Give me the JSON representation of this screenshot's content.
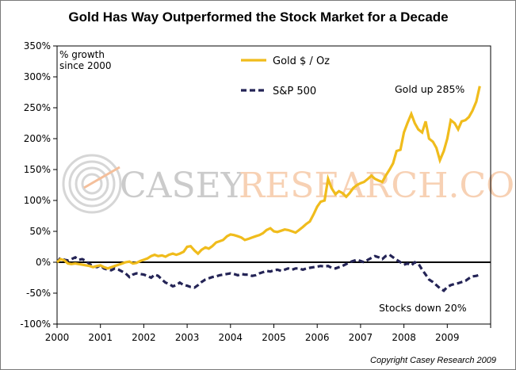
{
  "chart_data": {
    "type": "line",
    "title": "Gold Has Way Outperformed the Stock Market for a Decade",
    "ylabel_line1": "% growth",
    "ylabel_line2": "since 2000",
    "y_ticks": [
      "350%",
      "300%",
      "250%",
      "200%",
      "150%",
      "100%",
      "50%",
      "0%",
      "-50%",
      "-100%"
    ],
    "ylim": [
      -100,
      350
    ],
    "x_ticks": [
      "2000",
      "2001",
      "2002",
      "2003",
      "2004",
      "2005",
      "2006",
      "2007",
      "2008",
      "2009"
    ],
    "xlim": [
      2000,
      2010
    ],
    "series": [
      {
        "name": "Gold $ / Oz",
        "color": "#F0BC1C",
        "style": "solid",
        "x": [
          2000.0,
          2000.08,
          2000.17,
          2000.25,
          2000.33,
          2000.42,
          2000.5,
          2000.58,
          2000.67,
          2000.75,
          2000.83,
          2000.92,
          2001.0,
          2001.08,
          2001.17,
          2001.25,
          2001.33,
          2001.42,
          2001.5,
          2001.58,
          2001.67,
          2001.75,
          2001.83,
          2001.92,
          2002.0,
          2002.08,
          2002.17,
          2002.25,
          2002.33,
          2002.42,
          2002.5,
          2002.58,
          2002.67,
          2002.75,
          2002.83,
          2002.92,
          2003.0,
          2003.08,
          2003.17,
          2003.25,
          2003.33,
          2003.42,
          2003.5,
          2003.58,
          2003.67,
          2003.75,
          2003.83,
          2003.92,
          2004.0,
          2004.08,
          2004.17,
          2004.25,
          2004.33,
          2004.42,
          2004.5,
          2004.58,
          2004.67,
          2004.75,
          2004.83,
          2004.92,
          2005.0,
          2005.08,
          2005.17,
          2005.25,
          2005.33,
          2005.42,
          2005.5,
          2005.58,
          2005.67,
          2005.75,
          2005.83,
          2005.92,
          2006.0,
          2006.08,
          2006.17,
          2006.25,
          2006.33,
          2006.42,
          2006.5,
          2006.58,
          2006.67,
          2006.75,
          2006.83,
          2006.92,
          2007.0,
          2007.08,
          2007.17,
          2007.25,
          2007.33,
          2007.42,
          2007.5,
          2007.58,
          2007.67,
          2007.75,
          2007.83,
          2007.92,
          2008.0,
          2008.08,
          2008.17,
          2008.25,
          2008.33,
          2008.42,
          2008.5,
          2008.58,
          2008.67,
          2008.75,
          2008.83,
          2008.92,
          2009.0,
          2009.08,
          2009.17,
          2009.25,
          2009.33,
          2009.42,
          2009.5,
          2009.58,
          2009.67,
          2009.75
        ],
        "values": [
          0,
          5,
          3,
          -2,
          -3,
          -2,
          -3,
          -4,
          -5,
          -6,
          -8,
          -6,
          -5,
          -8,
          -10,
          -8,
          -6,
          -4,
          -2,
          0,
          1,
          -2,
          -1,
          2,
          4,
          6,
          10,
          12,
          10,
          11,
          9,
          12,
          14,
          12,
          14,
          17,
          25,
          26,
          19,
          14,
          20,
          24,
          22,
          26,
          32,
          34,
          36,
          42,
          45,
          44,
          42,
          40,
          36,
          38,
          40,
          42,
          44,
          47,
          52,
          55,
          50,
          49,
          51,
          53,
          52,
          50,
          48,
          52,
          57,
          62,
          66,
          78,
          90,
          98,
          100,
          135,
          120,
          110,
          115,
          112,
          106,
          112,
          120,
          125,
          128,
          130,
          135,
          140,
          135,
          132,
          130,
          140,
          150,
          160,
          180,
          182,
          210,
          225,
          240,
          225,
          215,
          210,
          228,
          200,
          195,
          185,
          165,
          180,
          200,
          230,
          225,
          215,
          228,
          230,
          235,
          245,
          260,
          285
        ]
      },
      {
        "name": "S&P 500",
        "color": "#242456",
        "style": "dashed",
        "x": [
          2000.0,
          2000.08,
          2000.17,
          2000.25,
          2000.33,
          2000.42,
          2000.5,
          2000.58,
          2000.67,
          2000.75,
          2000.83,
          2000.92,
          2001.0,
          2001.08,
          2001.17,
          2001.25,
          2001.33,
          2001.42,
          2001.5,
          2001.58,
          2001.67,
          2001.75,
          2001.83,
          2001.92,
          2002.0,
          2002.08,
          2002.17,
          2002.25,
          2002.33,
          2002.42,
          2002.5,
          2002.58,
          2002.67,
          2002.75,
          2002.83,
          2002.92,
          2003.0,
          2003.08,
          2003.17,
          2003.25,
          2003.33,
          2003.42,
          2003.5,
          2003.58,
          2003.67,
          2003.75,
          2003.83,
          2003.92,
          2004.0,
          2004.08,
          2004.17,
          2004.25,
          2004.33,
          2004.42,
          2004.5,
          2004.58,
          2004.67,
          2004.75,
          2004.83,
          2004.92,
          2005.0,
          2005.08,
          2005.17,
          2005.25,
          2005.33,
          2005.42,
          2005.5,
          2005.58,
          2005.67,
          2005.75,
          2005.83,
          2005.92,
          2006.0,
          2006.08,
          2006.17,
          2006.25,
          2006.33,
          2006.42,
          2006.5,
          2006.58,
          2006.67,
          2006.75,
          2006.83,
          2006.92,
          2007.0,
          2007.08,
          2007.17,
          2007.25,
          2007.33,
          2007.42,
          2007.5,
          2007.58,
          2007.67,
          2007.75,
          2007.83,
          2007.92,
          2008.0,
          2008.08,
          2008.17,
          2008.25,
          2008.33,
          2008.42,
          2008.5,
          2008.58,
          2008.67,
          2008.75,
          2008.83,
          2008.92,
          2009.0,
          2009.08,
          2009.17,
          2009.25,
          2009.33,
          2009.42,
          2009.5,
          2009.58,
          2009.67,
          2009.75
        ],
        "values": [
          0,
          7,
          4,
          3,
          5,
          8,
          4,
          5,
          2,
          -3,
          -6,
          -8,
          -5,
          -10,
          -12,
          -13,
          -10,
          -12,
          -15,
          -18,
          -24,
          -20,
          -18,
          -19,
          -20,
          -22,
          -25,
          -20,
          -22,
          -28,
          -33,
          -35,
          -39,
          -37,
          -33,
          -37,
          -38,
          -40,
          -41,
          -37,
          -32,
          -28,
          -26,
          -24,
          -23,
          -21,
          -20,
          -19,
          -18,
          -19,
          -21,
          -19,
          -20,
          -20,
          -22,
          -21,
          -18,
          -16,
          -14,
          -15,
          -13,
          -12,
          -14,
          -12,
          -10,
          -12,
          -10,
          -10,
          -12,
          -10,
          -9,
          -8,
          -7,
          -6,
          -7,
          -6,
          -9,
          -10,
          -8,
          -6,
          -3,
          0,
          2,
          4,
          2,
          0,
          4,
          7,
          10,
          8,
          5,
          10,
          12,
          8,
          4,
          0,
          -4,
          -2,
          -5,
          0,
          -2,
          -12,
          -20,
          -28,
          -32,
          -37,
          -42,
          -46,
          -40,
          -37,
          -35,
          -34,
          -32,
          -30,
          -26,
          -23,
          -22,
          -20
        ]
      }
    ],
    "annotations": [
      "Gold up 285%",
      "Stocks down 20%"
    ],
    "grid": false,
    "legend": "top-center"
  },
  "watermark": {
    "brand": "CASEY RESEARCH.COM",
    "word1": "CASEY",
    "word2": "RESEARCH.COM"
  },
  "copyright": "Copyright Casey Research 2009",
  "colors": {
    "gold": "#F0BC1C",
    "sp500": "#242456",
    "watermark_grey": "#C2C2C2",
    "watermark_orange": "#F6C9A8"
  }
}
